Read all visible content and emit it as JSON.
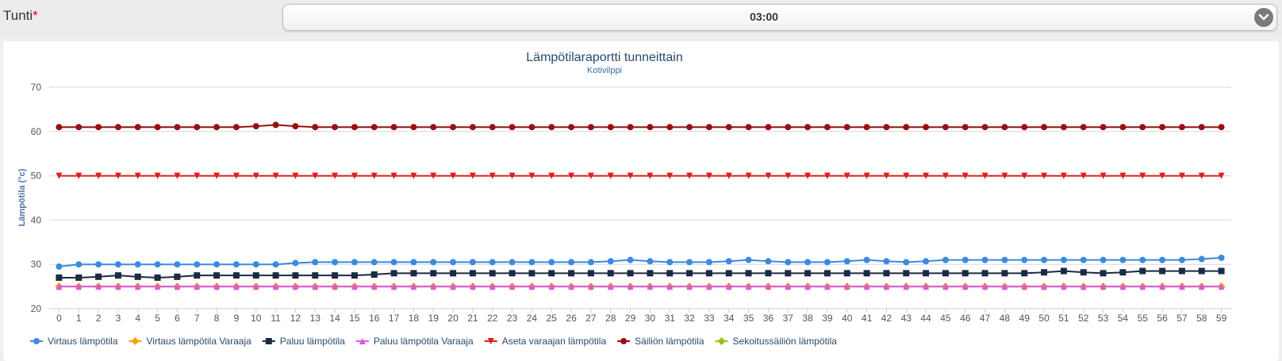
{
  "filter": {
    "label": "Tunti",
    "required_mark": "*",
    "selected": "03:00"
  },
  "chart_data": {
    "type": "line",
    "title": "Lämpötilaraportti tunneittain",
    "subtitle": "Kotivilppi",
    "xlabel": "",
    "ylabel": "Lämpötila (°c)",
    "ylim": [
      20,
      70
    ],
    "yticks": [
      20,
      30,
      40,
      50,
      60,
      70
    ],
    "grid": true,
    "legend_position": "bottom-left",
    "x": [
      0,
      1,
      2,
      3,
      4,
      5,
      6,
      7,
      8,
      9,
      10,
      11,
      12,
      13,
      14,
      15,
      16,
      17,
      18,
      19,
      20,
      21,
      22,
      23,
      24,
      25,
      26,
      27,
      28,
      29,
      30,
      31,
      32,
      33,
      34,
      35,
      36,
      37,
      38,
      39,
      40,
      41,
      42,
      43,
      44,
      45,
      46,
      47,
      48,
      49,
      50,
      51,
      52,
      53,
      54,
      55,
      56,
      57,
      58,
      59
    ],
    "series": [
      {
        "name": "Virtaus lämpötila",
        "color": "#3a8be0",
        "marker": "circle",
        "values": [
          29.5,
          30,
          30,
          30,
          30,
          30,
          30,
          30,
          30,
          30,
          30,
          30,
          30.3,
          30.5,
          30.5,
          30.5,
          30.5,
          30.5,
          30.5,
          30.5,
          30.5,
          30.5,
          30.5,
          30.5,
          30.5,
          30.5,
          30.5,
          30.5,
          30.7,
          31,
          30.7,
          30.5,
          30.5,
          30.5,
          30.7,
          31,
          30.7,
          30.5,
          30.5,
          30.5,
          30.7,
          31,
          30.7,
          30.5,
          30.7,
          31,
          31,
          31,
          31,
          31,
          31,
          31,
          31,
          31,
          31,
          31,
          31,
          31,
          31.2,
          31.5
        ]
      },
      {
        "name": "Virtaus lämpötila Varaaja",
        "color": "#f7a20c",
        "marker": "diamond",
        "values": [
          25,
          25,
          25,
          25,
          25,
          25,
          25,
          25,
          25,
          25,
          25,
          25,
          25,
          25,
          25,
          25,
          25,
          25,
          25,
          25,
          25,
          25,
          25,
          25,
          25,
          25,
          25,
          25,
          25,
          25,
          25,
          25,
          25,
          25,
          25,
          25,
          25,
          25,
          25,
          25,
          25,
          25,
          25,
          25,
          25,
          25,
          25,
          25,
          25,
          25,
          25,
          25,
          25,
          25,
          25,
          25,
          25,
          25,
          25,
          25
        ]
      },
      {
        "name": "Paluu lämpötila",
        "color": "#1b2a44",
        "marker": "square",
        "values": [
          27,
          27,
          27.2,
          27.5,
          27.2,
          27,
          27.2,
          27.5,
          27.5,
          27.5,
          27.5,
          27.5,
          27.5,
          27.5,
          27.5,
          27.5,
          27.7,
          28,
          28,
          28,
          28,
          28,
          28,
          28,
          28,
          28,
          28,
          28,
          28,
          28,
          28,
          28,
          28,
          28,
          28,
          28,
          28,
          28,
          28,
          28,
          28,
          28,
          28,
          28,
          28,
          28,
          28,
          28,
          28,
          28,
          28.2,
          28.5,
          28.2,
          28,
          28.2,
          28.5,
          28.5,
          28.5,
          28.5,
          28.5
        ]
      },
      {
        "name": "Paluu lämpötila Varaaja",
        "color": "#d85ae0",
        "marker": "triangle",
        "values": [
          25,
          25,
          25,
          25,
          25,
          25,
          25,
          25,
          25,
          25,
          25,
          25,
          25,
          25,
          25,
          25,
          25,
          25,
          25,
          25,
          25,
          25,
          25,
          25,
          25,
          25,
          25,
          25,
          25,
          25,
          25,
          25,
          25,
          25,
          25,
          25,
          25,
          25,
          25,
          25,
          25,
          25,
          25,
          25,
          25,
          25,
          25,
          25,
          25,
          25,
          25,
          25,
          25,
          25,
          25,
          25,
          25,
          25,
          25,
          25
        ]
      },
      {
        "name": "Aseta varaajan lämpötila",
        "color": "#dc1e1e",
        "marker": "triangle-down",
        "values": [
          50,
          50,
          50,
          50,
          50,
          50,
          50,
          50,
          50,
          50,
          50,
          50,
          50,
          50,
          50,
          50,
          50,
          50,
          50,
          50,
          50,
          50,
          50,
          50,
          50,
          50,
          50,
          50,
          50,
          50,
          50,
          50,
          50,
          50,
          50,
          50,
          50,
          50,
          50,
          50,
          50,
          50,
          50,
          50,
          50,
          50,
          50,
          50,
          50,
          50,
          50,
          50,
          50,
          50,
          50,
          50,
          50,
          50,
          50,
          50
        ]
      },
      {
        "name": "Säiliön lämpötila",
        "color": "#9b0f0f",
        "marker": "circle",
        "values": [
          61,
          61,
          61,
          61,
          61,
          61,
          61,
          61,
          61,
          61,
          61.2,
          61.5,
          61.2,
          61,
          61,
          61,
          61,
          61,
          61,
          61,
          61,
          61,
          61,
          61,
          61,
          61,
          61,
          61,
          61,
          61,
          61,
          61,
          61,
          61,
          61,
          61,
          61,
          61,
          61,
          61,
          61,
          61,
          61,
          61,
          61,
          61,
          61,
          61,
          61,
          61,
          61,
          61,
          61,
          61,
          61,
          61,
          61,
          61,
          61,
          61
        ]
      },
      {
        "name": "Sekoitussäiliön lämpötila",
        "color": "#95c11f",
        "marker": "diamond",
        "values": [
          25,
          25,
          25,
          25,
          25,
          25,
          25,
          25,
          25,
          25,
          25,
          25,
          25,
          25,
          25,
          25,
          25,
          25,
          25,
          25,
          25,
          25,
          25,
          25,
          25,
          25,
          25,
          25,
          25,
          25,
          25,
          25,
          25,
          25,
          25,
          25,
          25,
          25,
          25,
          25,
          25,
          25,
          25,
          25,
          25,
          25,
          25,
          25,
          25,
          25,
          25,
          25,
          25,
          25,
          25,
          25,
          25,
          25,
          25,
          25
        ]
      }
    ]
  }
}
